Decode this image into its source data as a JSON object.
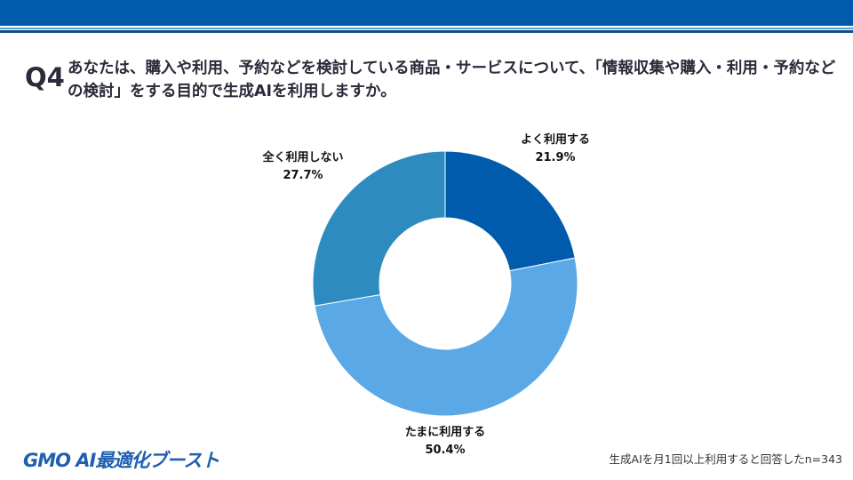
{
  "header": {
    "question_number": "Q4",
    "question_text": "あなたは、購入や利用、予約などを検討している商品・サービスについて、「情報収集や購入・利用・予約などの検討」をする目的で生成AIを利用しますか。"
  },
  "footer": {
    "logo": "GMO AI最適化ブースト",
    "note": "生成AIを月1回以上利用すると回答したn=343"
  },
  "chart_data": {
    "type": "pie",
    "donut": true,
    "start": "top",
    "direction": "clockwise",
    "slices": [
      {
        "label": "よく利用する",
        "value": 21.9,
        "display": "21.9%",
        "color": "#005bac"
      },
      {
        "label": "たまに利用する",
        "value": 50.4,
        "display": "50.4%",
        "color": "#5ba8e6"
      },
      {
        "label": "全く利用しない",
        "value": 27.7,
        "display": "27.7%",
        "color": "#2e8bbf"
      }
    ]
  }
}
